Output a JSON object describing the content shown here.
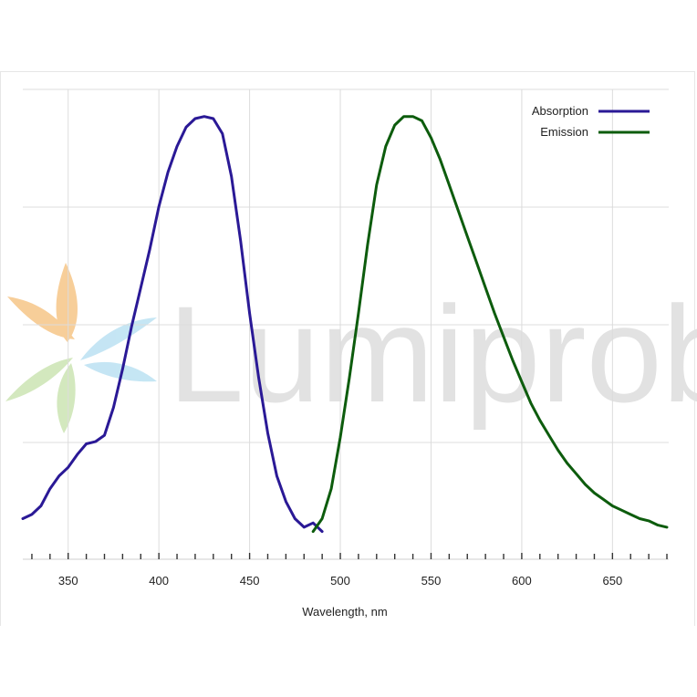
{
  "watermark": {
    "text": "Lumiprobe",
    "colors": {
      "orange": "#f7c98f",
      "blue": "#bfe3f3",
      "green": "#cfe6b8",
      "text": "#e2e2e2"
    }
  },
  "chart_data": {
    "type": "line",
    "title": "",
    "xlabel": "Wavelength, nm",
    "ylabel": "",
    "xlim": [
      325,
      681
    ],
    "ylim": [
      0,
      1.0
    ],
    "x_ticks": [
      350,
      400,
      450,
      500,
      550,
      600,
      650
    ],
    "x_tick_labels": [
      "350",
      "400",
      "450",
      "500",
      "550",
      "600",
      "650"
    ],
    "grid": true,
    "legend_position": "top-right",
    "series": [
      {
        "name": "Absorption",
        "color": "#2a1996",
        "x": [
          325,
          330,
          335,
          340,
          345,
          350,
          355,
          360,
          365,
          370,
          375,
          380,
          385,
          390,
          395,
          400,
          405,
          410,
          415,
          420,
          425,
          430,
          435,
          440,
          445,
          450,
          455,
          460,
          465,
          470,
          475,
          480,
          485,
          490
        ],
        "y": [
          0.05,
          0.06,
          0.08,
          0.12,
          0.15,
          0.17,
          0.2,
          0.225,
          0.23,
          0.245,
          0.31,
          0.4,
          0.5,
          0.59,
          0.68,
          0.78,
          0.86,
          0.92,
          0.965,
          0.985,
          0.99,
          0.985,
          0.95,
          0.85,
          0.7,
          0.53,
          0.38,
          0.25,
          0.15,
          0.09,
          0.05,
          0.03,
          0.04,
          0.02
        ]
      },
      {
        "name": "Emission",
        "color": "#0d5c0d",
        "x": [
          485,
          490,
          495,
          500,
          505,
          510,
          515,
          520,
          525,
          530,
          535,
          540,
          545,
          550,
          555,
          560,
          565,
          570,
          575,
          580,
          585,
          590,
          595,
          600,
          605,
          610,
          615,
          620,
          625,
          630,
          635,
          640,
          645,
          650,
          655,
          660,
          665,
          670,
          675,
          680
        ],
        "y": [
          0.02,
          0.05,
          0.12,
          0.24,
          0.38,
          0.53,
          0.69,
          0.83,
          0.92,
          0.97,
          0.99,
          0.99,
          0.98,
          0.94,
          0.89,
          0.83,
          0.77,
          0.71,
          0.65,
          0.59,
          0.53,
          0.475,
          0.42,
          0.37,
          0.32,
          0.28,
          0.245,
          0.21,
          0.18,
          0.155,
          0.13,
          0.11,
          0.095,
          0.08,
          0.07,
          0.06,
          0.05,
          0.045,
          0.035,
          0.03
        ]
      }
    ]
  }
}
